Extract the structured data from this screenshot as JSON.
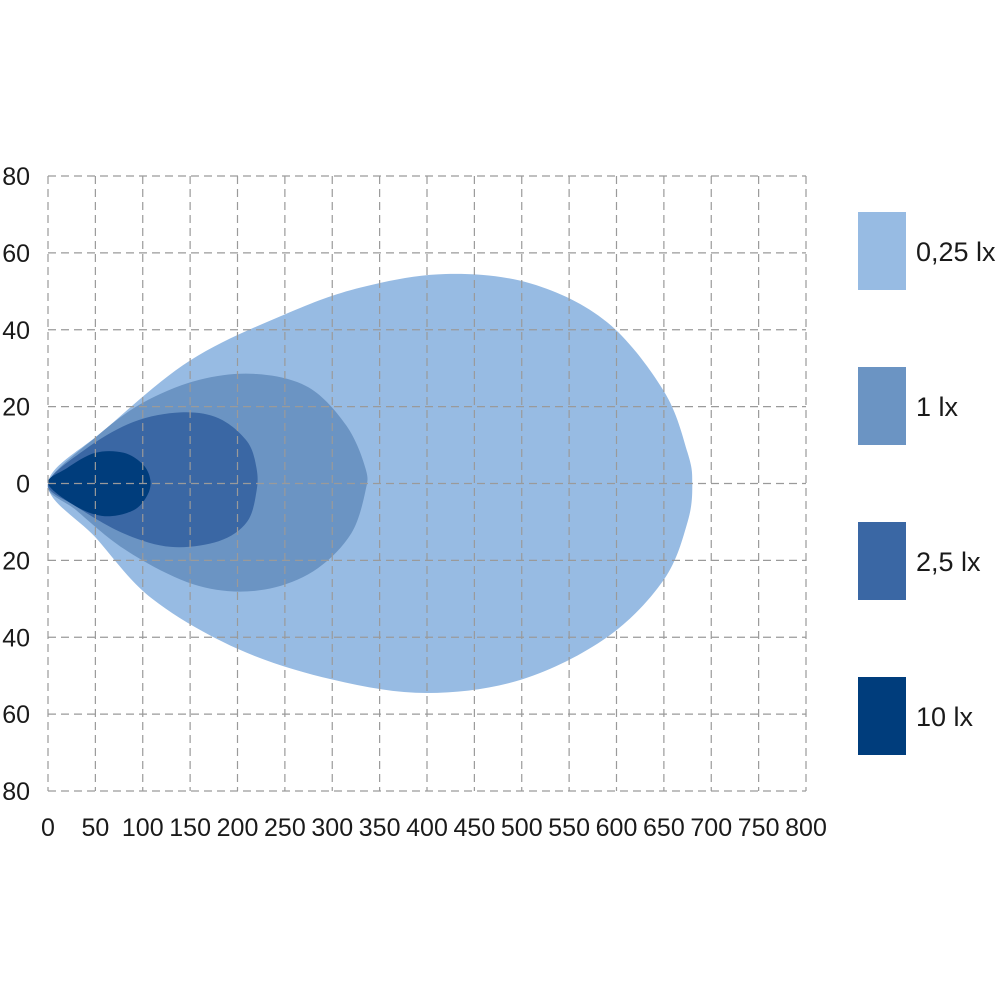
{
  "chart_data": {
    "type": "area",
    "title": "",
    "xlabel": "",
    "ylabel": "",
    "xlim": [
      0,
      800
    ],
    "ylim": [
      -80,
      80
    ],
    "x_ticks": [
      "0",
      "50",
      "100",
      "150",
      "200",
      "250",
      "300",
      "350",
      "400",
      "450",
      "500",
      "550",
      "600",
      "650",
      "700",
      "750",
      "800"
    ],
    "y_ticks": [
      "80",
      "60",
      "40",
      "20",
      "0",
      "20",
      "40",
      "60",
      "80"
    ],
    "grid": true,
    "legend_position": "right",
    "series": [
      {
        "name": "0,25 lx",
        "color": "#97bbe3",
        "points": [
          [
            0,
            0
          ],
          [
            60,
            14
          ],
          [
            150,
            32
          ],
          [
            250,
            44
          ],
          [
            330,
            51
          ],
          [
            420,
            54.5
          ],
          [
            510,
            52
          ],
          [
            590,
            42
          ],
          [
            650,
            24
          ],
          [
            675,
            8
          ],
          [
            680,
            0
          ],
          [
            675,
            -10
          ],
          [
            650,
            -25
          ],
          [
            590,
            -40
          ],
          [
            500,
            -51
          ],
          [
            400,
            -54.5
          ],
          [
            300,
            -51
          ],
          [
            200,
            -43
          ],
          [
            110,
            -30
          ],
          [
            50,
            -14
          ]
        ]
      },
      {
        "name": "1 lx",
        "color": "#6b94c3",
        "points": [
          [
            0,
            0
          ],
          [
            50,
            12
          ],
          [
            100,
            21
          ],
          [
            160,
            27
          ],
          [
            220,
            28.5
          ],
          [
            275,
            25
          ],
          [
            315,
            15
          ],
          [
            335,
            4
          ],
          [
            335,
            -2
          ],
          [
            320,
            -13
          ],
          [
            285,
            -22
          ],
          [
            240,
            -27
          ],
          [
            190,
            -28
          ],
          [
            140,
            -25
          ],
          [
            80,
            -17
          ],
          [
            30,
            -7
          ]
        ]
      },
      {
        "name": "2,5 lx",
        "color": "#3a67a4",
        "points": [
          [
            0,
            0
          ],
          [
            40,
            9
          ],
          [
            90,
            16
          ],
          [
            140,
            18.5
          ],
          [
            180,
            17
          ],
          [
            210,
            11
          ],
          [
            220,
            4
          ],
          [
            220,
            -2
          ],
          [
            210,
            -10
          ],
          [
            180,
            -15
          ],
          [
            130,
            -16.5
          ],
          [
            80,
            -13
          ],
          [
            30,
            -6
          ]
        ]
      },
      {
        "name": "10 lx",
        "color": "#003d7c",
        "points": [
          [
            0,
            0
          ],
          [
            20,
            4
          ],
          [
            50,
            8
          ],
          [
            80,
            8
          ],
          [
            100,
            5
          ],
          [
            108,
            1
          ],
          [
            105,
            -3
          ],
          [
            90,
            -7
          ],
          [
            60,
            -8.5
          ],
          [
            30,
            -6
          ]
        ]
      }
    ]
  }
}
